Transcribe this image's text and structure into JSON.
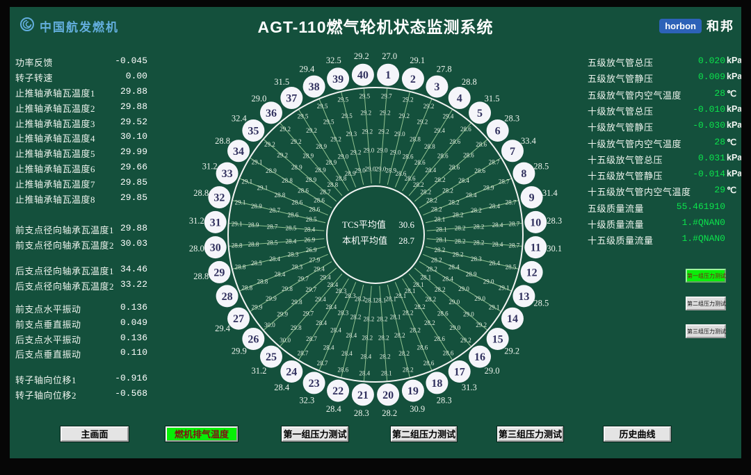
{
  "header": {
    "logo_left": "中国航发燃机",
    "title": "AGT-110燃气轮机状态监测系统",
    "badge": "horbon",
    "brand": "和邦"
  },
  "colors": {
    "background": "#14503c",
    "value_green": "#0ce44c",
    "active_button_green": "#07ef07",
    "active_button_text": "#7e1414",
    "logo_blue": "#63aedd",
    "badge_blue": "#2d62b8",
    "spoke_green": "#a8d7a0"
  },
  "left_panel": {
    "groups": [
      {
        "rows": [
          {
            "label": "功率反馈",
            "value": "-0.045"
          },
          {
            "label": "转子转速",
            "value": "0.00"
          }
        ]
      },
      {
        "rows": [
          {
            "label": "止推轴承轴瓦温度1",
            "value": "29.88"
          },
          {
            "label": "止推轴承轴瓦温度2",
            "value": "29.88"
          },
          {
            "label": "止推轴承轴瓦温度3",
            "value": "29.52"
          },
          {
            "label": "止推轴承轴瓦温度4",
            "value": "30.10"
          },
          {
            "label": "止推轴承轴瓦温度5",
            "value": "29.99"
          },
          {
            "label": "止推轴承轴瓦温度6",
            "value": "29.66"
          },
          {
            "label": "止推轴承轴瓦温度7",
            "value": "29.85"
          },
          {
            "label": "止推轴承轴瓦温度8",
            "value": "29.85"
          }
        ]
      },
      {
        "rows": [
          {
            "label": "前支点径向轴承瓦温度1",
            "value": "29.88"
          },
          {
            "label": "前支点径向轴承瓦温度2",
            "value": "30.03"
          }
        ]
      },
      {
        "rows": [
          {
            "label": "后支点径向轴承瓦温度1",
            "value": "34.46"
          },
          {
            "label": "后支点径向轴承瓦温度2",
            "value": "33.22"
          }
        ]
      },
      {
        "rows": [
          {
            "label": "前支点水平振动",
            "value": "0.136"
          },
          {
            "label": "前支点垂直振动",
            "value": "0.049"
          },
          {
            "label": "后支点水平振动",
            "value": "0.136"
          },
          {
            "label": "后支点垂直振动",
            "value": "0.110"
          }
        ]
      },
      {
        "rows": [
          {
            "label": "转子轴向位移1",
            "value": "-0.916"
          },
          {
            "label": "转子轴向位移2",
            "value": "-0.568"
          }
        ]
      }
    ]
  },
  "right_panel": {
    "rows": [
      {
        "label": "五级放气管总压",
        "value": "0.020",
        "unit": "kPa"
      },
      {
        "label": "五级放气管静压",
        "value": "0.009",
        "unit": "kPa"
      },
      {
        "label": "五级放气管内空气温度",
        "value": "28",
        "unit": "℃"
      },
      {
        "label": "十级放气管总压",
        "value": "-0.010",
        "unit": "kPa"
      },
      {
        "label": "十级放气管静压",
        "value": "-0.030",
        "unit": "kPa"
      },
      {
        "label": "十级放气管内空气温度",
        "value": "28",
        "unit": "℃"
      },
      {
        "label": "十五级放气管总压",
        "value": "0.031",
        "unit": "kPa"
      },
      {
        "label": "十五级放气管静压",
        "value": "-0.014",
        "unit": "kPa"
      },
      {
        "label": "十五级放气管内空气温度",
        "value": "29",
        "unit": "℃"
      },
      {
        "label": "五级质量流量",
        "value": "55.461910",
        "unit": ""
      },
      {
        "label": "十级质量流量",
        "value": "1.#QNAN0",
        "unit": ""
      },
      {
        "label": "十五级质量流量",
        "value": "1.#QNAN0",
        "unit": ""
      }
    ]
  },
  "side_buttons": [
    {
      "label": "第一组压力测试",
      "active": true
    },
    {
      "label": "第二组压力测试",
      "active": false
    },
    {
      "label": "第三组压力测试",
      "active": false
    }
  ],
  "nav_buttons": [
    {
      "label": "主画面",
      "active": false
    },
    {
      "label": "燃机排气温度",
      "active": true
    },
    {
      "label": "第一组压力测试",
      "active": false
    },
    {
      "label": "第二组压力测试",
      "active": false
    },
    {
      "label": "第三组压力测试",
      "active": false
    },
    {
      "label": "历史曲线",
      "active": false
    }
  ],
  "wheel": {
    "center": {
      "rows": [
        {
          "label": "TCS平均值",
          "value": "30.6"
        },
        {
          "label": "本机平均值",
          "value": "28.7"
        }
      ]
    },
    "positions": [
      {
        "n": 1,
        "rim": "27.0",
        "vals": [
          "29.0",
          "29.0",
          "29.2",
          "29.2",
          "29.7"
        ]
      },
      {
        "n": 2,
        "rim": "29.1",
        "vals": [
          "28.9",
          "29.0",
          "29.0",
          "29.2",
          "29.2"
        ]
      },
      {
        "n": 3,
        "rim": "27.8",
        "vals": [
          "28.6",
          "28.6",
          "28.8",
          "29.2",
          "29.2"
        ]
      },
      {
        "n": 4,
        "rim": "28.8",
        "vals": [
          "28.6",
          "28.6",
          "28.8",
          "29.4",
          "29.4"
        ]
      },
      {
        "n": 5,
        "rim": "31.5",
        "vals": [
          "28.2",
          "28.4",
          "28.6",
          "28.6",
          "28.6"
        ]
      },
      {
        "n": 6,
        "rim": "28.3",
        "vals": [
          "28.2",
          "28.2",
          "28.6",
          "28.6",
          "28.6"
        ]
      },
      {
        "n": 7,
        "rim": "33.4",
        "vals": [
          "28.2",
          "28.2",
          "28.4",
          "28.6",
          "28.7"
        ]
      },
      {
        "n": 8,
        "rim": "28.5",
        "vals": [
          "28.2",
          "28.2",
          "28.4",
          "28.9",
          "28.7"
        ]
      },
      {
        "n": 9,
        "rim": "31.4",
        "vals": [
          "28.1",
          "28.2",
          "28.2",
          "28.4",
          "28.7"
        ]
      },
      {
        "n": 10,
        "rim": "28.3",
        "vals": [
          "28.1",
          "28.2",
          "28.2",
          "28.4",
          "28.7"
        ]
      },
      {
        "n": 11,
        "rim": "30.1",
        "vals": [
          "28.1",
          "28.2",
          "28.2",
          "28.4",
          "28.7"
        ]
      },
      {
        "n": 12,
        "rim": "",
        "vals": [
          "28.2",
          "28.2",
          "28.3",
          "28.4",
          "28.5"
        ]
      },
      {
        "n": 13,
        "rim": "28.5",
        "vals": [
          "28.2",
          "28.4",
          "28.9",
          "29.0",
          "29.1"
        ]
      },
      {
        "n": 14,
        "rim": "",
        "vals": [
          "28.2",
          "28.4",
          "29.0",
          "29.0",
          "29.1"
        ]
      },
      {
        "n": 15,
        "rim": "29.2",
        "vals": [
          "28.1",
          "28.2",
          "29.0",
          "29.0",
          "29.2"
        ]
      },
      {
        "n": 16,
        "rim": "29.0",
        "vals": [
          "28.1",
          "28.2",
          "28.6",
          "29.0",
          "29.2"
        ]
      },
      {
        "n": 17,
        "rim": "31.3",
        "vals": [
          "28.1",
          "28.2",
          "28.2",
          "28.6",
          "28.6"
        ]
      },
      {
        "n": 18,
        "rim": "28.3",
        "vals": [
          "28.1",
          "28.2",
          "28.2",
          "28.6",
          "28.6"
        ]
      },
      {
        "n": 19,
        "rim": "30.9",
        "vals": [
          "28.1",
          "28.1",
          "28.2",
          "28.2",
          "28.2"
        ]
      },
      {
        "n": 20,
        "rim": "28.2",
        "vals": [
          "28.1",
          "28.2",
          "28.2",
          "28.2",
          "28.1"
        ]
      },
      {
        "n": 21,
        "rim": "28.3",
        "vals": [
          "28.1",
          "28.2",
          "28.2",
          "28.4",
          "28.4"
        ]
      },
      {
        "n": 22,
        "rim": "28.4",
        "vals": [
          "28.2",
          "28.2",
          "28.4",
          "28.4",
          "28.6"
        ]
      },
      {
        "n": 23,
        "rim": "32.3",
        "vals": [
          "28.3",
          "28.3",
          "28.4",
          "28.4",
          "28.7"
        ]
      },
      {
        "n": 24,
        "rim": "28.4",
        "vals": [
          "28.3",
          "28.4",
          "28.4",
          "28.7",
          "28.7"
        ]
      },
      {
        "n": 25,
        "rim": "31.2",
        "vals": [
          "28.4",
          "29.4",
          "29.7",
          "29.8",
          "30.0"
        ]
      },
      {
        "n": 26,
        "rim": "29.9",
        "vals": [
          "29.4",
          "29.7",
          "29.8",
          "29.9",
          "30.0"
        ]
      },
      {
        "n": 27,
        "rim": "29.4",
        "vals": [
          "29.4",
          "29.7",
          "29.8",
          "29.9",
          "29.9"
        ]
      },
      {
        "n": 28,
        "rim": "",
        "vals": [
          "27.9",
          "28.3",
          "28.4",
          "28.8",
          "28.8"
        ]
      },
      {
        "n": 29,
        "rim": "28.8",
        "vals": [
          "26.9",
          "28.3",
          "28.4",
          "28.5",
          "28.8"
        ]
      },
      {
        "n": 30,
        "rim": "28.0",
        "vals": [
          "26.9",
          "28.4",
          "28.5",
          "28.8",
          "28.8"
        ]
      },
      {
        "n": 31,
        "rim": "31.2",
        "vals": [
          "28.4",
          "28.5",
          "28.7",
          "28.9",
          "29.1"
        ]
      },
      {
        "n": 32,
        "rim": "28.8",
        "vals": [
          "28.5",
          "28.6",
          "28.7",
          "28.9",
          "29.1"
        ]
      },
      {
        "n": 33,
        "rim": "31.2",
        "vals": [
          "28.6",
          "28.6",
          "28.8",
          "29.1",
          "29.1"
        ]
      },
      {
        "n": 34,
        "rim": "28.8",
        "vals": [
          "28.6",
          "28.6",
          "28.8",
          "28.9",
          "29.1"
        ]
      },
      {
        "n": 35,
        "rim": "32.4",
        "vals": [
          "28.7",
          "28.9",
          "28.9",
          "29.2",
          "29.2"
        ]
      },
      {
        "n": 36,
        "rim": "29.0",
        "vals": [
          "28.8",
          "28.9",
          "28.9",
          "29.2",
          "29.2"
        ]
      },
      {
        "n": 37,
        "rim": "31.5",
        "vals": [
          "28.8",
          "28.9",
          "28.9",
          "29.2",
          "29.5"
        ]
      },
      {
        "n": 38,
        "rim": "29.4",
        "vals": [
          "28.9",
          "29.0",
          "29.2",
          "29.5",
          "29.5"
        ]
      },
      {
        "n": 39,
        "rim": "32.5",
        "vals": [
          "29.0",
          "29.2",
          "29.3",
          "29.5",
          "29.5"
        ]
      },
      {
        "n": 40,
        "rim": "29.2",
        "vals": [
          "29.0",
          "29.0",
          "29.2",
          "29.2",
          "29.5"
        ]
      }
    ]
  }
}
